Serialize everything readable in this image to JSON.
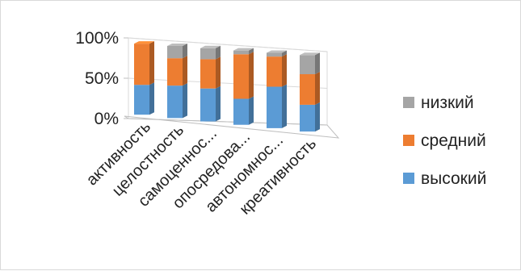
{
  "chart_data": {
    "type": "bar",
    "stacked": true,
    "percent_stacked": true,
    "three_d": true,
    "categories": [
      "активность",
      "целостность",
      "самоценнос...",
      "опосредова...",
      "автономнос...",
      "креативность"
    ],
    "series": [
      {
        "name": "высокий",
        "values": [
          42,
          45,
          45,
          35,
          55,
          35
        ],
        "color": "#5b9bd5"
      },
      {
        "name": "средний",
        "values": [
          58,
          38,
          40,
          60,
          40,
          40
        ],
        "color": "#ed7d31"
      },
      {
        "name": "низкий",
        "values": [
          0,
          17,
          15,
          5,
          5,
          25
        ],
        "color": "#a5a5a5"
      }
    ],
    "yticks": [
      "0%",
      "50%",
      "100%"
    ],
    "ylim": [
      0,
      100
    ],
    "grid": true,
    "legend_position": "right",
    "legend_order": [
      "низкий",
      "средний",
      "высокий"
    ]
  }
}
